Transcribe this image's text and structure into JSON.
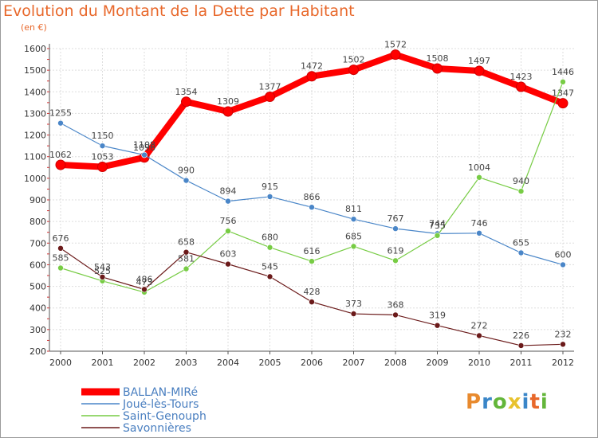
{
  "title": "Evolution du Montant de la Dette par Habitant",
  "subtitle": "(en €)",
  "logo": {
    "text": "Proxiti",
    "colors": [
      "#e88a2e",
      "#3a86c8",
      "#63b63a",
      "#e8c22e",
      "#3a86c8",
      "#e8682b",
      "#63b63a"
    ]
  },
  "chart_data": {
    "type": "line",
    "title": "Evolution du Montant de la Dette par Habitant",
    "ylabel": "(en €)",
    "xlabel": "",
    "x": [
      "2000",
      "2001",
      "2002",
      "2003",
      "2004",
      "2005",
      "2006",
      "2007",
      "2008",
      "2009",
      "2010",
      "2011",
      "2012"
    ],
    "ylim": [
      200,
      1600
    ],
    "yticks": [
      200,
      300,
      400,
      500,
      600,
      700,
      800,
      900,
      1000,
      1100,
      1200,
      1300,
      1400,
      1500,
      1600
    ],
    "grid": true,
    "legend_position": "bottom-left",
    "series": [
      {
        "name": "BALLAN-MIRé",
        "color": "#ff0000",
        "values": [
          1062,
          1053,
          1096,
          1354,
          1309,
          1377,
          1472,
          1502,
          1572,
          1508,
          1497,
          1423,
          1347
        ],
        "labels": [
          "1062",
          "1053",
          "1096",
          "1354",
          "1309",
          "1377",
          "1472",
          "1502",
          "1572",
          "1508",
          "1497",
          "1423",
          "1347"
        ]
      },
      {
        "name": "Joué-lès-Tours",
        "color": "#4a86c8",
        "values": [
          1255,
          1150,
          1108,
          990,
          894,
          915,
          866,
          811,
          767,
          744,
          746,
          655,
          600
        ],
        "labels": [
          "1255",
          "1150",
          "1108",
          "990",
          "894",
          "915",
          "866",
          "811",
          "767",
          "744",
          "746",
          "655",
          "600"
        ]
      },
      {
        "name": "Saint-Genouph",
        "color": "#77cc44",
        "values": [
          585,
          525,
          473,
          581,
          756,
          680,
          616,
          685,
          619,
          735,
          1004,
          940,
          1446
        ],
        "labels": [
          "585",
          "525",
          "473",
          "581",
          "756",
          "680",
          "616",
          "685",
          "619",
          "735",
          "1004",
          "940",
          "1446"
        ]
      },
      {
        "name": "Savonnières",
        "color": "#6b1a1a",
        "values": [
          676,
          543,
          486,
          658,
          603,
          545,
          428,
          373,
          368,
          319,
          272,
          226,
          232
        ],
        "labels": [
          "676",
          "543",
          "486",
          "658",
          "603",
          "545",
          "428",
          "373",
          "368",
          "319",
          "272",
          "226",
          "232"
        ]
      }
    ]
  }
}
